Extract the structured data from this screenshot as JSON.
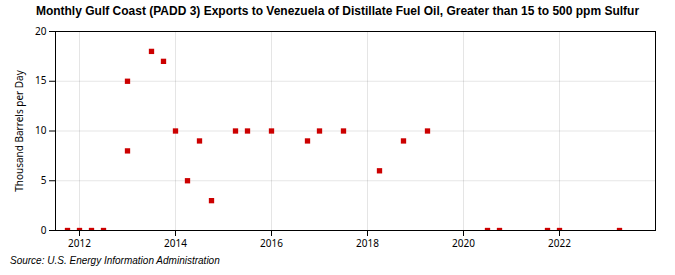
{
  "chart_data": {
    "type": "scatter",
    "title": "Monthly Gulf Coast (PADD 3) Exports to Venezuela of Distillate Fuel Oil, Greater than 15 to 500 ppm Sulfur",
    "ylabel": "Thousand Barrels per Day",
    "caption": "Source: U.S. Energy Information Administration",
    "x": [
      2011.75,
      2012.0,
      2012.25,
      2012.5,
      2013.0,
      2013.0,
      2013.5,
      2013.75,
      2014.0,
      2014.25,
      2014.5,
      2014.75,
      2015.25,
      2015.5,
      2016.0,
      2016.75,
      2017.0,
      2017.5,
      2018.25,
      2018.75,
      2019.25,
      2020.5,
      2020.75,
      2021.75,
      2022.0,
      2023.25
    ],
    "values": [
      0,
      0,
      0,
      0,
      8,
      15,
      18,
      17,
      10,
      5,
      9,
      3,
      10,
      10,
      10,
      9,
      10,
      10,
      6,
      9,
      10,
      0,
      0,
      0,
      0,
      0
    ],
    "color": "#cc0000",
    "marker": "square",
    "xlim": [
      2011.5,
      2024.0
    ],
    "ylim": [
      0,
      20
    ],
    "xticks": [
      2012,
      2014,
      2016,
      2018,
      2020,
      2022
    ],
    "yticks": [
      0,
      5,
      10,
      15,
      20
    ],
    "grid": true
  }
}
